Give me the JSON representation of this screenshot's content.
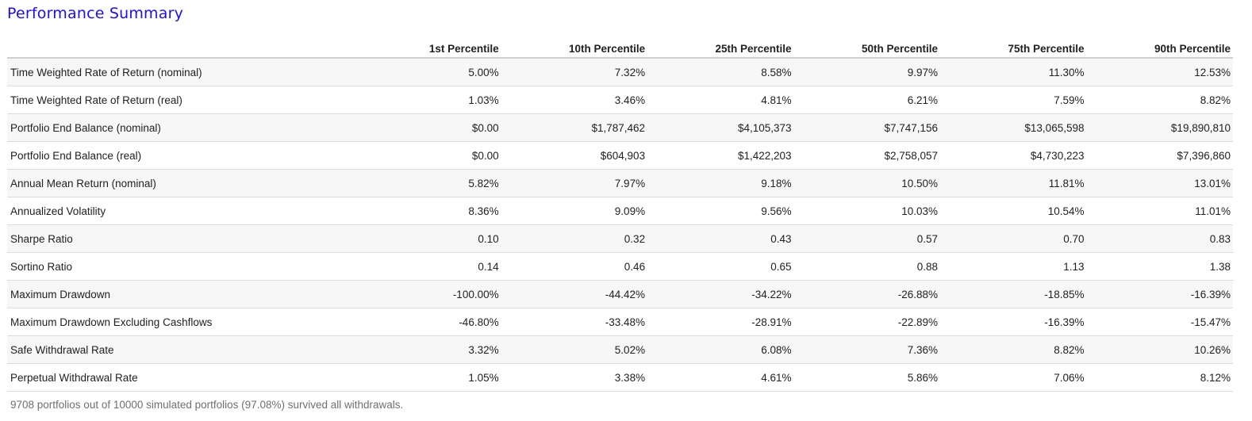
{
  "title": "Performance Summary",
  "table": {
    "columns": [
      "",
      "1st Percentile",
      "10th Percentile",
      "25th Percentile",
      "50th Percentile",
      "75th Percentile",
      "90th Percentile"
    ],
    "rows": [
      {
        "metric": "Time Weighted Rate of Return (nominal)",
        "values": [
          "5.00%",
          "7.32%",
          "8.58%",
          "9.97%",
          "11.30%",
          "12.53%"
        ]
      },
      {
        "metric": "Time Weighted Rate of Return (real)",
        "values": [
          "1.03%",
          "3.46%",
          "4.81%",
          "6.21%",
          "7.59%",
          "8.82%"
        ]
      },
      {
        "metric": "Portfolio End Balance (nominal)",
        "values": [
          "$0.00",
          "$1,787,462",
          "$4,105,373",
          "$7,747,156",
          "$13,065,598",
          "$19,890,810"
        ]
      },
      {
        "metric": "Portfolio End Balance (real)",
        "values": [
          "$0.00",
          "$604,903",
          "$1,422,203",
          "$2,758,057",
          "$4,730,223",
          "$7,396,860"
        ]
      },
      {
        "metric": "Annual Mean Return (nominal)",
        "values": [
          "5.82%",
          "7.97%",
          "9.18%",
          "10.50%",
          "11.81%",
          "13.01%"
        ]
      },
      {
        "metric": "Annualized Volatility",
        "values": [
          "8.36%",
          "9.09%",
          "9.56%",
          "10.03%",
          "10.54%",
          "11.01%"
        ]
      },
      {
        "metric": "Sharpe Ratio",
        "values": [
          "0.10",
          "0.32",
          "0.43",
          "0.57",
          "0.70",
          "0.83"
        ]
      },
      {
        "metric": "Sortino Ratio",
        "values": [
          "0.14",
          "0.46",
          "0.65",
          "0.88",
          "1.13",
          "1.38"
        ]
      },
      {
        "metric": "Maximum Drawdown",
        "values": [
          "-100.00%",
          "-44.42%",
          "-34.22%",
          "-26.88%",
          "-18.85%",
          "-16.39%"
        ]
      },
      {
        "metric": "Maximum Drawdown Excluding Cashflows",
        "values": [
          "-46.80%",
          "-33.48%",
          "-28.91%",
          "-22.89%",
          "-16.39%",
          "-15.47%"
        ]
      },
      {
        "metric": "Safe Withdrawal Rate",
        "values": [
          "3.32%",
          "5.02%",
          "6.08%",
          "7.36%",
          "8.82%",
          "10.26%"
        ]
      },
      {
        "metric": "Perpetual Withdrawal Rate",
        "values": [
          "1.05%",
          "3.38%",
          "4.61%",
          "5.86%",
          "7.06%",
          "8.12%"
        ]
      }
    ]
  },
  "footnote": "9708 portfolios out of 10000 simulated portfolios (97.08%) survived all withdrawals."
}
